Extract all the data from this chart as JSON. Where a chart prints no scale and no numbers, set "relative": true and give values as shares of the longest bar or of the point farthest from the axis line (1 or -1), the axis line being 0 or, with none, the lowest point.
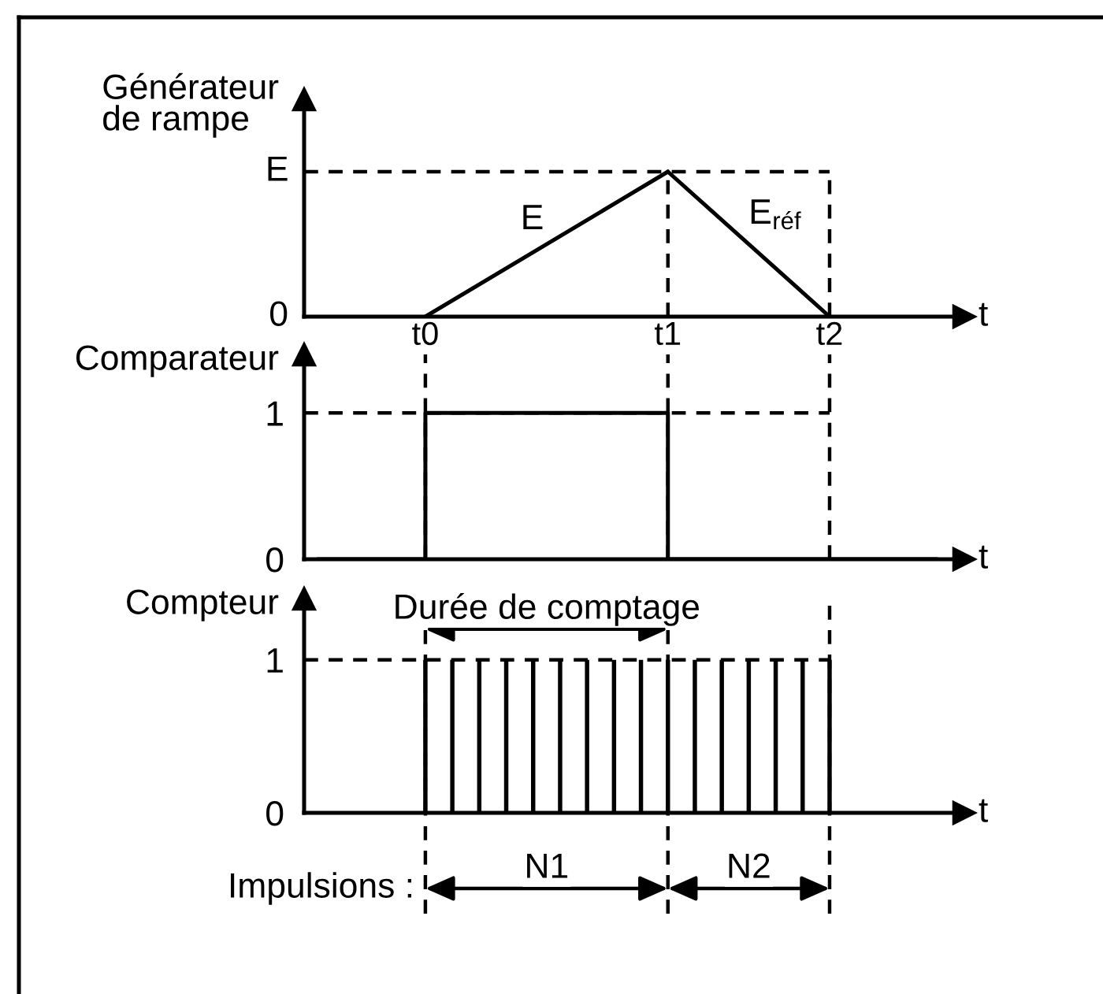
{
  "chart_data": [
    {
      "type": "line",
      "relative": true,
      "ylabel": "Générateur\nde rampe",
      "xlabel": "t",
      "categories": [
        null,
        null,
        null,
        null,
        "t0",
        null,
        null,
        null,
        null,
        null,
        null,
        null,
        null,
        "t1",
        null,
        null,
        null,
        null,
        null,
        "t2",
        null,
        null,
        null,
        null
      ],
      "ylim": [
        0,
        1.5
      ],
      "series": [
        {
          "name": "E",
          "color": "#000000",
          "values": [
            null,
            null,
            null,
            null,
            0,
            null,
            null,
            null,
            null,
            null,
            null,
            null,
            null,
            1,
            null,
            null,
            null,
            null,
            null,
            null,
            null,
            null,
            null,
            null
          ]
        },
        {
          "name": "E$_{réf}$",
          "color": "#000000",
          "values": [
            null,
            null,
            null,
            null,
            null,
            null,
            null,
            null,
            null,
            null,
            null,
            null,
            null,
            1,
            null,
            null,
            null,
            null,
            null,
            0,
            null,
            null,
            null,
            null
          ]
        }
      ],
      "ref_lines": [
        {
          "axis": "y",
          "value": 1,
          "label": "E",
          "color": "#000000",
          "line_style": "dashed"
        },
        {
          "axis": "x",
          "value": "t1",
          "color": "#000000",
          "line_style": "dashed"
        },
        {
          "axis": "x",
          "value": "t2",
          "color": "#000000",
          "line_style": "dashed"
        }
      ],
      "annotations": [
        "0"
      ]
    },
    {
      "type": "step",
      "ylabel": "Comparateur",
      "xlabel": "t",
      "categories": [
        null,
        null,
        null,
        null,
        "t0",
        null,
        null,
        null,
        null,
        null,
        null,
        null,
        null,
        "t1",
        null,
        null,
        null,
        null,
        null,
        "t2",
        null,
        null,
        null,
        null
      ],
      "tick_labels": "y",
      "ylim": [
        0,
        1.4
      ],
      "yticks": [
        0,
        1
      ],
      "series": [
        {
          "color": "#000000",
          "values": [
            0,
            0,
            0,
            0,
            1,
            1,
            1,
            1,
            1,
            1,
            1,
            1,
            1,
            0,
            0,
            0,
            0,
            0,
            0,
            0,
            0,
            0,
            0,
            0
          ]
        }
      ],
      "ref_lines": [
        {
          "axis": "y",
          "value": 1,
          "color": "#000000",
          "line_style": "dashed"
        },
        {
          "axis": "x",
          "value": "t0",
          "color": "#000000",
          "line_style": "dashed"
        },
        {
          "axis": "x",
          "value": "t1",
          "color": "#000000",
          "line_style": "dashed"
        },
        {
          "axis": "x",
          "value": "t2",
          "color": "#000000",
          "line_style": "dashed"
        }
      ]
    },
    {
      "type": "bar",
      "ylabel": "Compteur",
      "xlabel": "t",
      "categories": [
        null,
        null,
        null,
        null,
        "t0",
        null,
        null,
        null,
        null,
        null,
        null,
        null,
        null,
        "t1",
        null,
        null,
        null,
        null,
        null,
        "t2",
        null,
        null,
        null,
        null
      ],
      "tick_labels": "y",
      "ylim": [
        0,
        1.4
      ],
      "yticks": [
        0,
        1
      ],
      "values": [
        null,
        null,
        null,
        null,
        1,
        1,
        1,
        1,
        1,
        1,
        1,
        1,
        1,
        1,
        1,
        1,
        1,
        1,
        1,
        1,
        null,
        null,
        null,
        null
      ],
      "color": "#000000",
      "ref_lines": [
        {
          "axis": "y",
          "value": 1,
          "color": "#000000",
          "line_style": "dashed"
        },
        {
          "axis": "x",
          "value": "t0",
          "color": "#000000",
          "line_style": "dashed"
        },
        {
          "axis": "x",
          "value": "t1",
          "color": "#000000",
          "line_style": "dashed"
        },
        {
          "axis": "x",
          "value": "t2",
          "color": "#000000",
          "line_style": "dashed"
        }
      ],
      "annotations": [
        "Durée de comptage",
        "Impulsions :",
        "N1",
        "N2"
      ]
    }
  ]
}
